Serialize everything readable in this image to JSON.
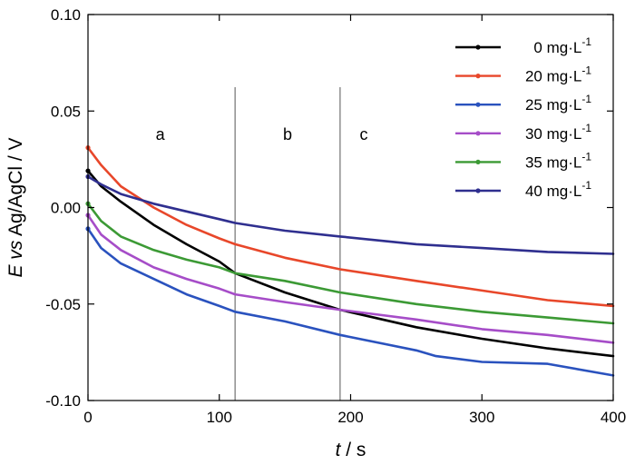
{
  "chart_data": {
    "type": "line",
    "xlabel": {
      "italic": "t",
      "rest": " / s"
    },
    "ylabel": {
      "italic": "E vs",
      "rest": " Ag/AgCl / V"
    },
    "xlim": [
      0,
      400
    ],
    "ylim": [
      -0.1,
      0.1
    ],
    "x_ticks": [
      0,
      100,
      200,
      300,
      400
    ],
    "x_tick_labels": [
      "0",
      "100",
      "200",
      "300",
      "400"
    ],
    "y_ticks": [
      -0.1,
      -0.05,
      0.0,
      0.05,
      0.1
    ],
    "y_tick_labels": [
      "-0.10",
      "-0.05",
      "0.00",
      "0.05",
      "0.10"
    ],
    "grid": false,
    "legend_position": "top-right",
    "vlines": [
      112,
      192
    ],
    "regions": [
      {
        "label": "a",
        "x": 55
      },
      {
        "label": "b",
        "x": 152
      },
      {
        "label": "c",
        "x": 210
      }
    ],
    "region_label_y": 0.035,
    "series": [
      {
        "name": "0 mg·L",
        "sup": "-1",
        "color": "#000000",
        "x": [
          0,
          10,
          25,
          50,
          75,
          100,
          112,
          150,
          192,
          250,
          300,
          350,
          400
        ],
        "y": [
          0.019,
          0.011,
          0.003,
          -0.009,
          -0.019,
          -0.028,
          -0.034,
          -0.044,
          -0.053,
          -0.062,
          -0.068,
          -0.073,
          -0.077
        ]
      },
      {
        "name": "20 mg·L",
        "sup": "-1",
        "color": "#e8472a",
        "x": [
          0,
          10,
          25,
          50,
          75,
          100,
          112,
          150,
          192,
          250,
          300,
          350,
          400
        ],
        "y": [
          0.031,
          0.022,
          0.011,
          0.0,
          -0.009,
          -0.016,
          -0.019,
          -0.026,
          -0.032,
          -0.038,
          -0.043,
          -0.048,
          -0.051
        ]
      },
      {
        "name": "25 mg·L",
        "sup": "-1",
        "color": "#2a52be",
        "x": [
          0,
          10,
          25,
          50,
          75,
          100,
          112,
          150,
          192,
          250,
          265,
          300,
          350,
          400
        ],
        "y": [
          -0.011,
          -0.021,
          -0.029,
          -0.037,
          -0.045,
          -0.051,
          -0.054,
          -0.059,
          -0.066,
          -0.074,
          -0.077,
          -0.08,
          -0.081,
          -0.087
        ]
      },
      {
        "name": "30 mg·L",
        "sup": "-1",
        "color": "#a64dc8",
        "x": [
          0,
          10,
          25,
          50,
          75,
          100,
          112,
          150,
          192,
          250,
          300,
          350,
          400
        ],
        "y": [
          -0.004,
          -0.014,
          -0.022,
          -0.031,
          -0.037,
          -0.042,
          -0.045,
          -0.049,
          -0.053,
          -0.058,
          -0.063,
          -0.066,
          -0.07
        ]
      },
      {
        "name": "35 mg·L",
        "sup": "-1",
        "color": "#3c9a35",
        "x": [
          0,
          10,
          25,
          50,
          75,
          100,
          112,
          150,
          192,
          250,
          300,
          350,
          400
        ],
        "y": [
          0.002,
          -0.007,
          -0.015,
          -0.022,
          -0.027,
          -0.031,
          -0.034,
          -0.038,
          -0.044,
          -0.05,
          -0.054,
          -0.057,
          -0.06
        ]
      },
      {
        "name": "40 mg·L",
        "sup": "-1",
        "color": "#2f2f8f",
        "x": [
          0,
          10,
          25,
          50,
          75,
          100,
          112,
          150,
          192,
          250,
          300,
          350,
          400
        ],
        "y": [
          0.016,
          0.012,
          0.007,
          0.002,
          -0.002,
          -0.006,
          -0.008,
          -0.012,
          -0.015,
          -0.019,
          -0.021,
          -0.023,
          -0.024
        ]
      }
    ]
  }
}
